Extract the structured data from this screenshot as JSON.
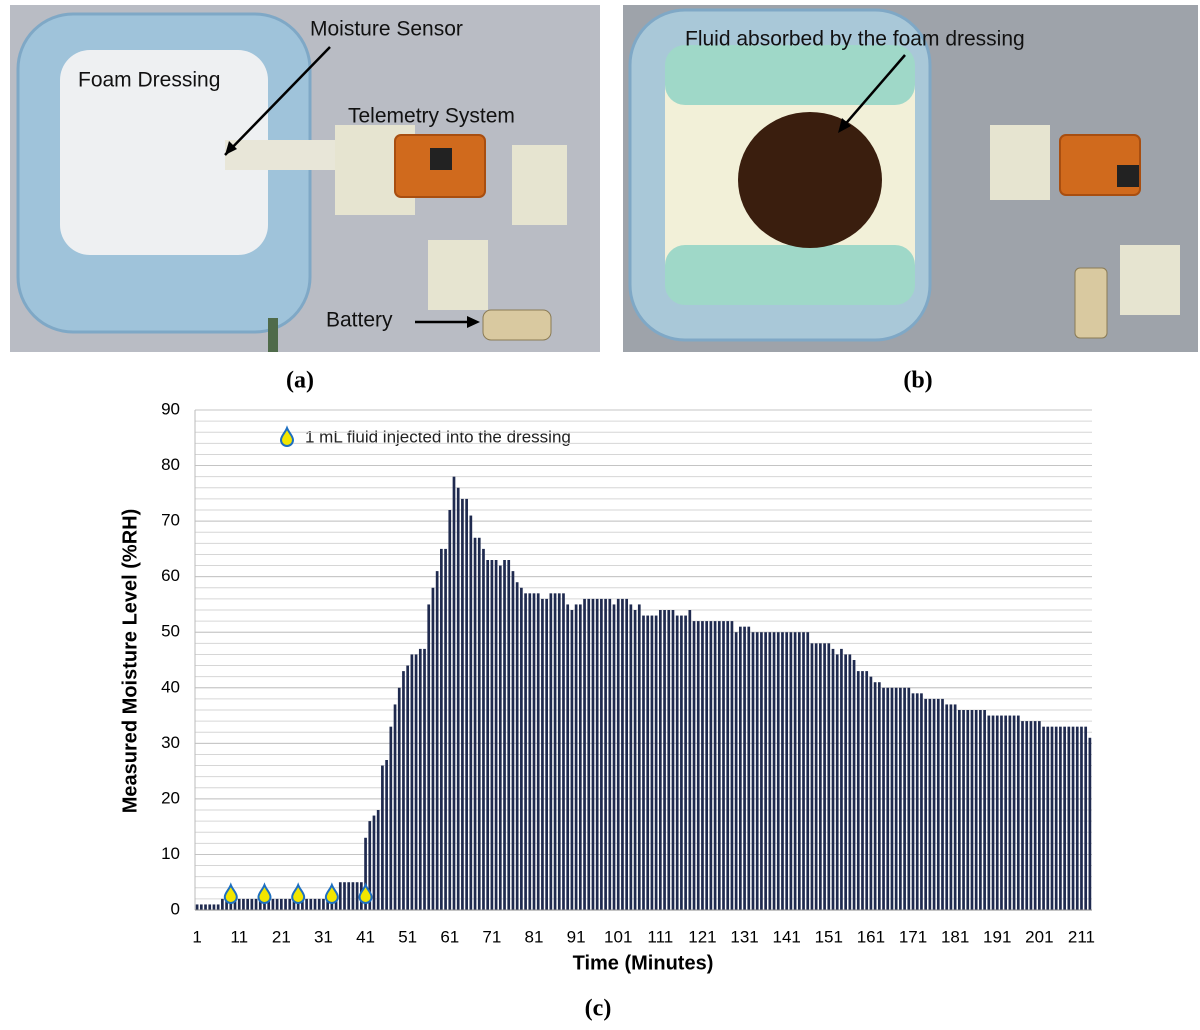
{
  "photos": {
    "a": {
      "caption": "(a)",
      "labels": [
        "Moisture Sensor",
        "Foam Dressing",
        "Telemetry System",
        "Battery"
      ]
    },
    "b": {
      "caption": "(b)",
      "labels": [
        "Fluid absorbed by the foam dressing"
      ]
    }
  },
  "chart_data": {
    "type": "bar",
    "caption": "(c)",
    "x_label": "Time (Minutes)",
    "y_label": "Measured Moisture Level (%RH)",
    "legend": "1 mL fluid injected into the dressing",
    "injection_minutes": [
      9,
      17,
      25,
      33,
      41
    ],
    "color": "#1f2a4f",
    "grid": true,
    "ylim": [
      0,
      90
    ],
    "yticks": [
      0,
      10,
      20,
      30,
      40,
      50,
      60,
      70,
      80,
      90
    ],
    "categories": [
      "1",
      null,
      null,
      null,
      null,
      null,
      null,
      null,
      null,
      null,
      "11",
      null,
      null,
      null,
      null,
      null,
      null,
      null,
      null,
      null,
      "21",
      null,
      null,
      null,
      null,
      null,
      null,
      null,
      null,
      null,
      "31",
      null,
      null,
      null,
      null,
      null,
      null,
      null,
      null,
      null,
      "41",
      null,
      null,
      null,
      null,
      null,
      null,
      null,
      null,
      null,
      "51",
      null,
      null,
      null,
      null,
      null,
      null,
      null,
      null,
      null,
      "61",
      null,
      null,
      null,
      null,
      null,
      null,
      null,
      null,
      null,
      "71",
      null,
      null,
      null,
      null,
      null,
      null,
      null,
      null,
      null,
      "81",
      null,
      null,
      null,
      null,
      null,
      null,
      null,
      null,
      null,
      "91",
      null,
      null,
      null,
      null,
      null,
      null,
      null,
      null,
      null,
      "101",
      null,
      null,
      null,
      null,
      null,
      null,
      null,
      null,
      null,
      "111",
      null,
      null,
      null,
      null,
      null,
      null,
      null,
      null,
      null,
      "121",
      null,
      null,
      null,
      null,
      null,
      null,
      null,
      null,
      null,
      "131",
      null,
      null,
      null,
      null,
      null,
      null,
      null,
      null,
      null,
      "141",
      null,
      null,
      null,
      null,
      null,
      null,
      null,
      null,
      null,
      "151",
      null,
      null,
      null,
      null,
      null,
      null,
      null,
      null,
      null,
      "161",
      null,
      null,
      null,
      null,
      null,
      null,
      null,
      null,
      null,
      "171",
      null,
      null,
      null,
      null,
      null,
      null,
      null,
      null,
      null,
      "181",
      null,
      null,
      null,
      null,
      null,
      null,
      null,
      null,
      null,
      "191",
      null,
      null,
      null,
      null,
      null,
      null,
      null,
      null,
      null,
      "201",
      null,
      null,
      null,
      null,
      null,
      null,
      null,
      null,
      null,
      "211",
      null,
      null
    ],
    "values": [
      1,
      1,
      1,
      1,
      1,
      1,
      2,
      2,
      2,
      2,
      2,
      2,
      2,
      2,
      2,
      2,
      2,
      2,
      2,
      2,
      2,
      2,
      2,
      2,
      2,
      2,
      2,
      2,
      2,
      2,
      2,
      2,
      2,
      3,
      5,
      5,
      5,
      5,
      5,
      5,
      13,
      16,
      17,
      18,
      26,
      27,
      33,
      37,
      40,
      43,
      44,
      46,
      46,
      47,
      47,
      55,
      58,
      61,
      65,
      65,
      72,
      78,
      76,
      74,
      74,
      71,
      67,
      67,
      65,
      63,
      63,
      63,
      62,
      63,
      63,
      61,
      59,
      58,
      57,
      57,
      57,
      57,
      56,
      56,
      57,
      57,
      57,
      57,
      55,
      54,
      55,
      55,
      56,
      56,
      56,
      56,
      56,
      56,
      56,
      55,
      56,
      56,
      56,
      55,
      54,
      55,
      53,
      53,
      53,
      53,
      54,
      54,
      54,
      54,
      53,
      53,
      53,
      54,
      52,
      52,
      52,
      52,
      52,
      52,
      52,
      52,
      52,
      52,
      50,
      51,
      51,
      51,
      50,
      50,
      50,
      50,
      50,
      50,
      50,
      50,
      50,
      50,
      50,
      50,
      50,
      50,
      48,
      48,
      48,
      48,
      48,
      47,
      46,
      47,
      46,
      46,
      45,
      43,
      43,
      43,
      42,
      41,
      41,
      40,
      40,
      40,
      40,
      40,
      40,
      40,
      39,
      39,
      39,
      38,
      38,
      38,
      38,
      38,
      37,
      37,
      37,
      36,
      36,
      36,
      36,
      36,
      36,
      36,
      35,
      35,
      35,
      35,
      35,
      35,
      35,
      35,
      34,
      34,
      34,
      34,
      34,
      33,
      33,
      33,
      33,
      33,
      33,
      33,
      33,
      33,
      33,
      33,
      31
    ]
  }
}
